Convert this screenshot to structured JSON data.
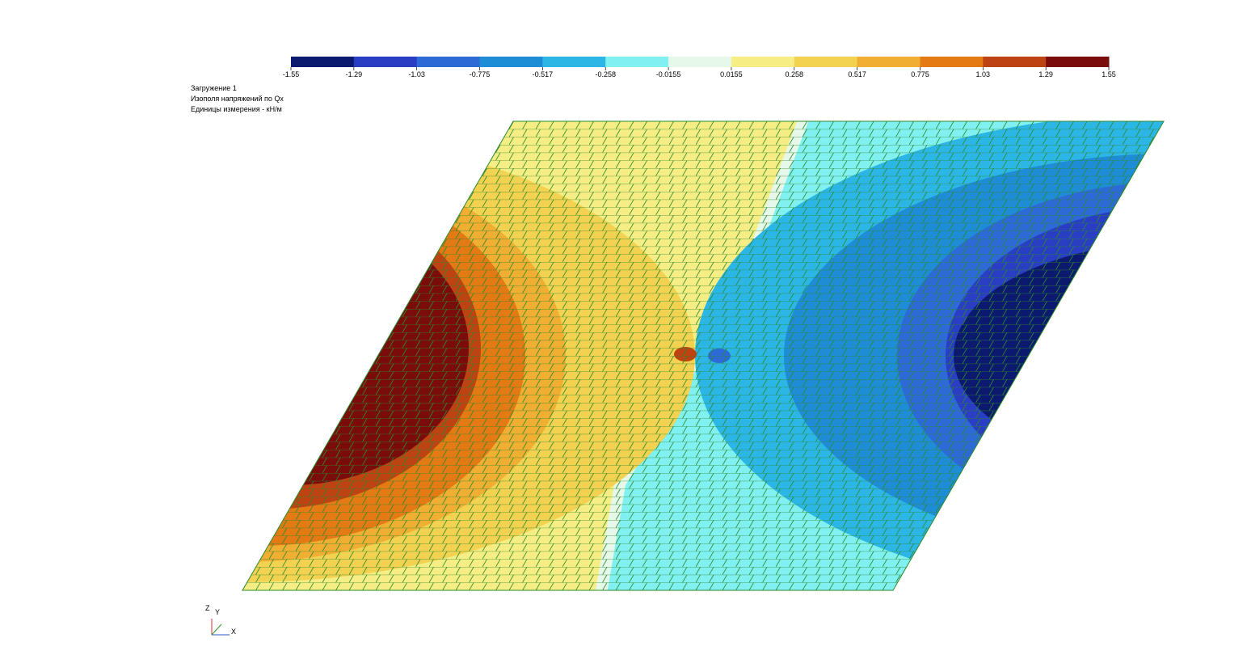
{
  "legend": {
    "ticks": [
      -1.55,
      -1.29,
      -1.03,
      -0.775,
      -0.517,
      -0.258,
      -0.0155,
      0.0155,
      0.258,
      0.517,
      0.775,
      1.03,
      1.29,
      1.55
    ],
    "colors": [
      "#0b1a6e",
      "#2a3ec4",
      "#2d6ad6",
      "#1f8cd6",
      "#2cb6e6",
      "#80f0f0",
      "#e6f8ea",
      "#f6ee84",
      "#f2d250",
      "#f0ae32",
      "#e37a14",
      "#bd4412",
      "#7a0c0c"
    ]
  },
  "info": [
    "Загружение  1",
    "Изополя напряжений по Qx",
    "Единицы измерения - кН/м"
  ],
  "axes": {
    "z": "Z",
    "y": "Y",
    "x": "X"
  }
}
